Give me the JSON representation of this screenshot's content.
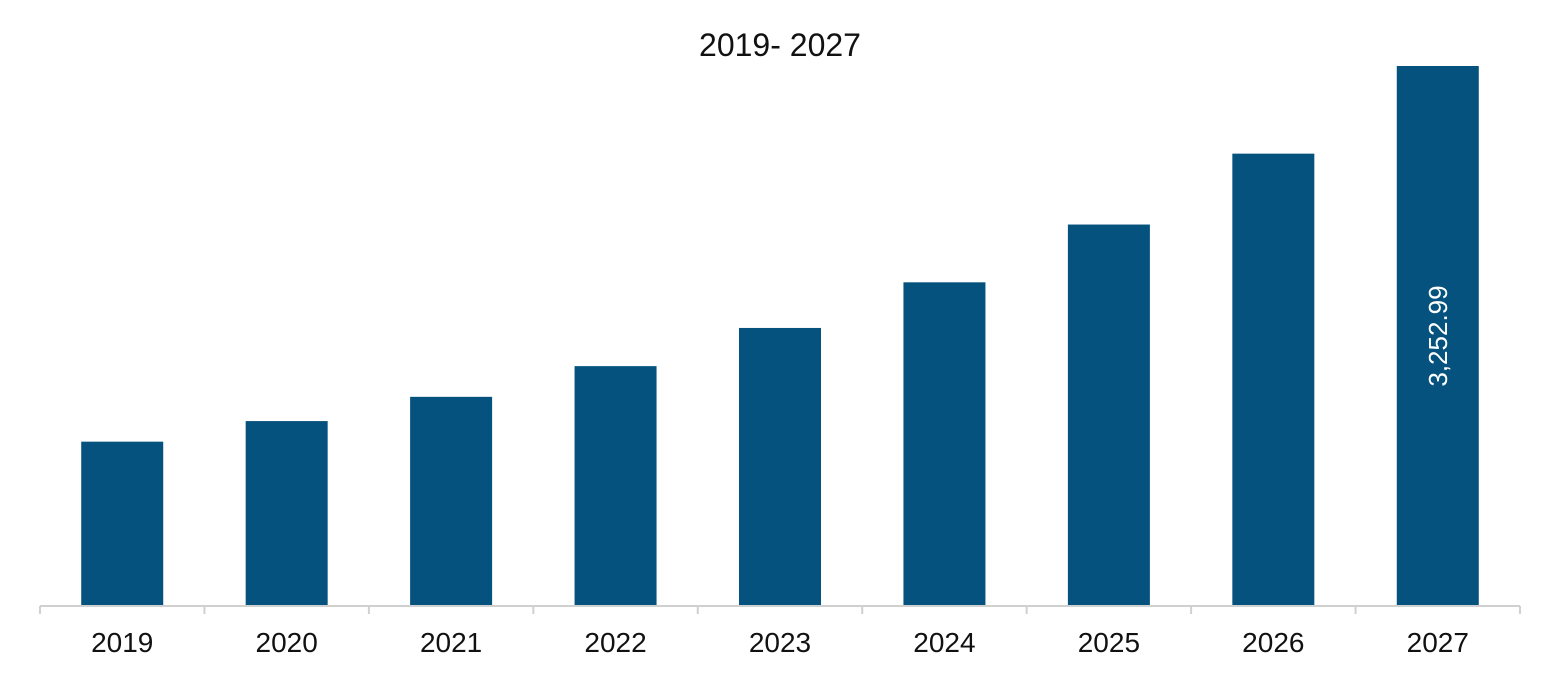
{
  "chart_data": {
    "type": "bar",
    "title": "2019- 2027",
    "xlabel": "",
    "ylabel": "",
    "categories": [
      "2019",
      "2020",
      "2021",
      "2022",
      "2023",
      "2024",
      "2025",
      "2026",
      "2027"
    ],
    "values": [
      990,
      1114,
      1260,
      1445,
      1675,
      1950,
      2298,
      2725,
      3252.99
    ],
    "data_labels": {
      "8": "3,252.99"
    },
    "ylim": [
      0,
      3252.99
    ],
    "grid": false,
    "legend": "none",
    "bar_color": "#06527E",
    "axis_color": "#d0d0d0"
  }
}
